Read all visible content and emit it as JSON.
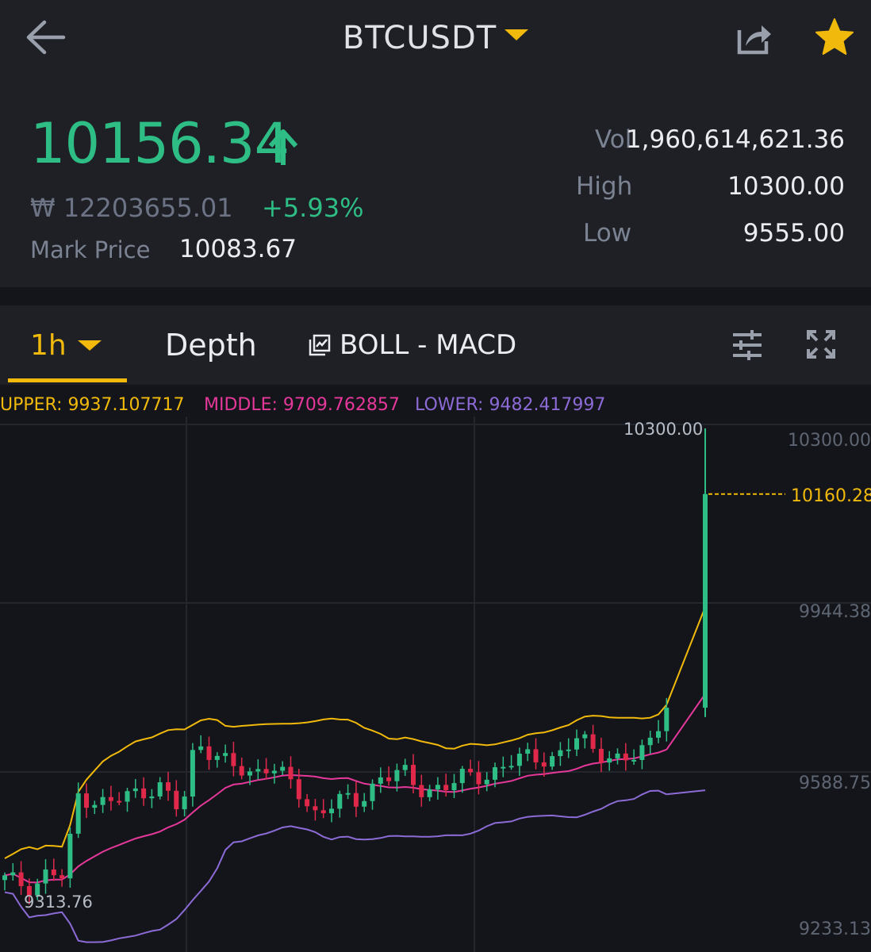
{
  "header": {
    "pair": "BTCUSDT",
    "last_price": "10156.34",
    "won_price": "₩ 12203655.01",
    "change_pct": "+5.93%",
    "mark_price_label": "Mark Price",
    "mark_price_value": "10083.67",
    "vol_label": "Vol",
    "vol_value": "1,960,614,621.36",
    "high_label": "High",
    "high_value": "10300.00",
    "low_label": "Low",
    "low_value": "9555.00"
  },
  "tabs": {
    "interval": "1h",
    "depth": "Depth",
    "indicators": "BOLL - MACD"
  },
  "legend": {
    "upper": "UPPER: 9937.107717",
    "middle": "MIDDLE: 9709.762857",
    "lower": "LOWER: 9482.417997"
  },
  "chart": {
    "y_labels": [
      "10300.00",
      "9944.38",
      "9588.75",
      "9233.13"
    ],
    "high_marker": "10300.00",
    "low_marker": "9313.76",
    "current_price": "10160.28",
    "colors": {
      "up": "#2ebd85",
      "down": "#e0294a",
      "upper": "#f0b90b",
      "middle": "#e5389a",
      "lower": "#8c6bd6"
    }
  },
  "chart_data": {
    "type": "candlestick",
    "interval": "1h",
    "y_axis_ticks": [
      10300.0,
      9944.38,
      9588.75,
      9233.13
    ],
    "ylim": [
      9200,
      10310
    ],
    "last_close": 10160.28,
    "visible_high": 10300.0,
    "visible_low": 9313.76,
    "indicators": {
      "BOLL": {
        "upper": 9937.107717,
        "middle": 9709.762857,
        "lower": 9482.417997
      }
    }
  }
}
